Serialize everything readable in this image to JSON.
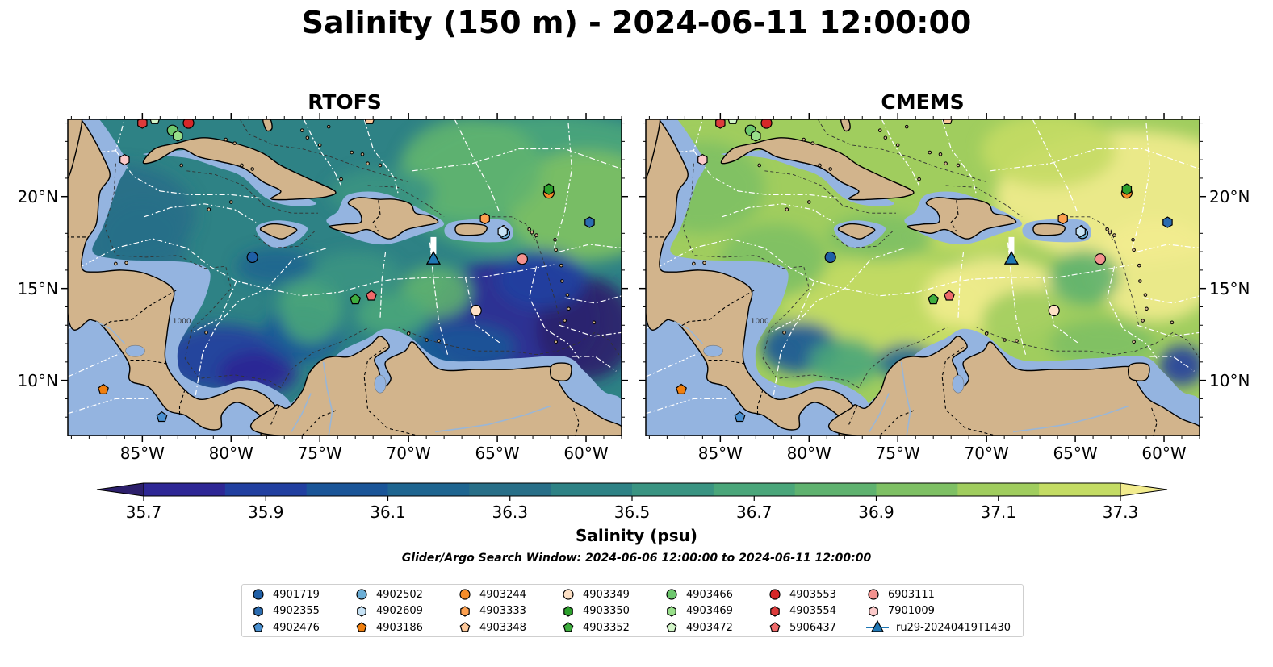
{
  "title": "Salinity (150 m) - 2024-06-11 12:00:00",
  "panels": [
    {
      "name": "RTOFS",
      "tone": "fresh"
    },
    {
      "name": "CMEMS",
      "tone": "salty"
    }
  ],
  "map": {
    "lon_range": [
      -89.2,
      -58.0
    ],
    "lat_range": [
      7.0,
      24.2
    ],
    "lon_ticks": [
      "85°W",
      "80°W",
      "75°W",
      "70°W",
      "65°W",
      "60°W"
    ],
    "lon_tick_values": [
      -85,
      -80,
      -75,
      -70,
      -65,
      -60
    ],
    "lat_ticks": [
      "20°N",
      "15°N",
      "10°N"
    ],
    "lat_tick_values": [
      20,
      15,
      10
    ],
    "contour_label": "1000",
    "colors": {
      "land": "#d2b48c",
      "shelf": "#94b4e0",
      "coast": "#000000",
      "eez": "#ffffff"
    }
  },
  "colorbar": {
    "label": "Salinity (psu)",
    "min": 35.6,
    "max": 37.4,
    "step": 0.1,
    "extend": "both",
    "tick_labels": [
      "35.7",
      "35.9",
      "36.1",
      "36.3",
      "36.5",
      "36.7",
      "36.9",
      "37.1",
      "37.3"
    ],
    "tick_values": [
      35.7,
      35.9,
      36.1,
      36.3,
      36.5,
      36.7,
      36.9,
      37.1,
      37.3
    ],
    "colormap": [
      "#2c1f6b",
      "#2e2795",
      "#213fa0",
      "#1a5598",
      "#1e6590",
      "#286f88",
      "#2e8285",
      "#3a9482",
      "#4aa67a",
      "#5fb26f",
      "#7ec064",
      "#a0cd5e",
      "#c4dc64",
      "#f2ec8e"
    ]
  },
  "search_window": "Glider/Argo Search Window: 2024-06-06 12:00:00 to 2024-06-11 12:00:00",
  "legend": {
    "columns": 7,
    "items": [
      {
        "id": "4901719",
        "shape": "circle",
        "color": "#1f5fa6"
      },
      {
        "id": "4902355",
        "shape": "hexagon",
        "color": "#2b6cb0"
      },
      {
        "id": "4902476",
        "shape": "pentagon",
        "color": "#4a90d0"
      },
      {
        "id": "4902502",
        "shape": "circle",
        "color": "#6baed6"
      },
      {
        "id": "4902609",
        "shape": "hexagon",
        "color": "#c6e2f5"
      },
      {
        "id": "4903186",
        "shape": "pentagon",
        "color": "#f07f0e"
      },
      {
        "id": "4903244",
        "shape": "circle",
        "color": "#f68d2a"
      },
      {
        "id": "4903333",
        "shape": "hexagon",
        "color": "#fda04f"
      },
      {
        "id": "4903348",
        "shape": "pentagon",
        "color": "#fdc89a"
      },
      {
        "id": "4903349",
        "shape": "circle",
        "color": "#fde0c5"
      },
      {
        "id": "4903350",
        "shape": "hexagon",
        "color": "#2ca02c"
      },
      {
        "id": "4903352",
        "shape": "pentagon",
        "color": "#3fae3f"
      },
      {
        "id": "4903466",
        "shape": "circle",
        "color": "#6dc76d"
      },
      {
        "id": "4903469",
        "shape": "hexagon",
        "color": "#98df8a"
      },
      {
        "id": "4903472",
        "shape": "pentagon",
        "color": "#d2f5c8"
      },
      {
        "id": "4903553",
        "shape": "circle",
        "color": "#d62728"
      },
      {
        "id": "4903554",
        "shape": "hexagon",
        "color": "#dc3b3b"
      },
      {
        "id": "5906437",
        "shape": "pentagon",
        "color": "#ef6a6a"
      },
      {
        "id": "6903111",
        "shape": "circle",
        "color": "#f4928f"
      },
      {
        "id": "7901009",
        "shape": "hexagon",
        "color": "#fbc9c9"
      },
      {
        "id": "ru29-20240419T1430",
        "shape": "triangle-line",
        "color": "#1f77b4"
      }
    ]
  },
  "floats": [
    {
      "id": "4901719",
      "lon": -78.8,
      "lat": 16.7
    },
    {
      "id": "4902355",
      "lon": -59.8,
      "lat": 18.6
    },
    {
      "id": "4902476",
      "lon": -83.9,
      "lat": 8.0
    },
    {
      "id": "4902502",
      "lon": -64.6,
      "lat": 18.0
    },
    {
      "id": "4902609",
      "lon": -64.7,
      "lat": 18.1
    },
    {
      "id": "4903186",
      "lon": -87.2,
      "lat": 9.5
    },
    {
      "id": "4903244",
      "lon": -62.1,
      "lat": 20.2
    },
    {
      "id": "4903333",
      "lon": -65.7,
      "lat": 18.8
    },
    {
      "id": "4903348",
      "lon": -72.2,
      "lat": 24.2
    },
    {
      "id": "4903349",
      "lon": -66.2,
      "lat": 13.8
    },
    {
      "id": "4903350",
      "lon": -62.1,
      "lat": 20.4
    },
    {
      "id": "4903352",
      "lon": -73.0,
      "lat": 14.4
    },
    {
      "id": "4903466",
      "lon": -83.3,
      "lat": 23.6
    },
    {
      "id": "4903469",
      "lon": -83.0,
      "lat": 23.3
    },
    {
      "id": "4903472",
      "lon": -84.3,
      "lat": 24.2
    },
    {
      "id": "4903553",
      "lon": -82.4,
      "lat": 24.0
    },
    {
      "id": "4903554",
      "lon": -85.0,
      "lat": 24.0
    },
    {
      "id": "5906437",
      "lon": -72.1,
      "lat": 14.6
    },
    {
      "id": "6903111",
      "lon": -63.6,
      "lat": 16.6
    },
    {
      "id": "7901009",
      "lon": -86.0,
      "lat": 22.0
    }
  ],
  "glider": {
    "id": "ru29-20240419T1430",
    "lon": -68.6,
    "lat": 16.6,
    "track_top_lat": 17.8
  }
}
